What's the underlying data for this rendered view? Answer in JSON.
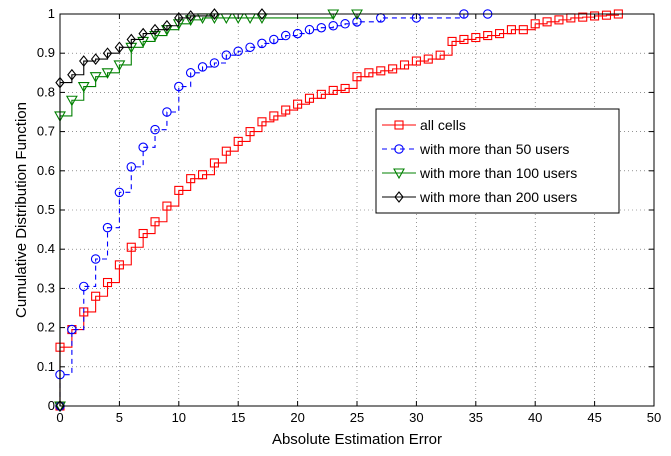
{
  "chart_data": {
    "type": "line",
    "xlabel": "Absolute Estimation Error",
    "ylabel": "Cumulative Distribution Function",
    "xlim": [
      0,
      50
    ],
    "ylim": [
      0,
      1
    ],
    "xticks": [
      0,
      5,
      10,
      15,
      20,
      25,
      30,
      35,
      40,
      45,
      50
    ],
    "yticks": [
      0,
      0.1,
      0.2,
      0.3,
      0.4,
      0.5,
      0.6,
      0.7,
      0.8,
      0.9,
      1
    ],
    "xtick_labels": [
      "0",
      "5",
      "10",
      "15",
      "20",
      "25",
      "30",
      "35",
      "40",
      "45",
      "50"
    ],
    "ytick_labels": [
      "0",
      "0.1",
      "0.2",
      "0.3",
      "0.4",
      "0.5",
      "0.6",
      "0.7",
      "0.8",
      "0.9",
      "1"
    ],
    "grid": true,
    "legend_position": "center-right",
    "series": [
      {
        "name": "all cells",
        "color": "#ff0000",
        "line_style": "solid",
        "marker": "square",
        "x": [
          0,
          1,
          2,
          3,
          4,
          5,
          6,
          7,
          8,
          9,
          10,
          11,
          12,
          13,
          14,
          15,
          16,
          17,
          18,
          19,
          20,
          21,
          22,
          23,
          24,
          25,
          26,
          27,
          28,
          29,
          30,
          31,
          32,
          33,
          34,
          35,
          36,
          37,
          38,
          39,
          40,
          41,
          42,
          43,
          44,
          45,
          46,
          47
        ],
        "y": [
          0.15,
          0.195,
          0.24,
          0.28,
          0.315,
          0.36,
          0.405,
          0.44,
          0.47,
          0.51,
          0.55,
          0.58,
          0.59,
          0.62,
          0.65,
          0.675,
          0.7,
          0.725,
          0.74,
          0.755,
          0.77,
          0.785,
          0.795,
          0.805,
          0.81,
          0.84,
          0.85,
          0.855,
          0.86,
          0.87,
          0.88,
          0.885,
          0.895,
          0.93,
          0.935,
          0.94,
          0.945,
          0.95,
          0.96,
          0.96,
          0.975,
          0.98,
          0.985,
          0.99,
          0.992,
          0.995,
          0.997,
          1.0
        ]
      },
      {
        "name": "with more than 50 users",
        "color": "#0000ff",
        "line_style": "dashed",
        "marker": "circle",
        "x": [
          0,
          1,
          2,
          3,
          4,
          5,
          6,
          7,
          8,
          9,
          10,
          11,
          12,
          13,
          14,
          15,
          16,
          17,
          18,
          19,
          20,
          21,
          22,
          23,
          24,
          25,
          27,
          30,
          34,
          36
        ],
        "y": [
          0.08,
          0.195,
          0.305,
          0.375,
          0.455,
          0.545,
          0.61,
          0.66,
          0.705,
          0.75,
          0.815,
          0.85,
          0.865,
          0.875,
          0.895,
          0.905,
          0.915,
          0.925,
          0.935,
          0.945,
          0.95,
          0.96,
          0.965,
          0.97,
          0.975,
          0.98,
          0.99,
          0.99,
          1.0,
          1.0
        ]
      },
      {
        "name": "with more than 100 users",
        "color": "#008000",
        "line_style": "solid",
        "marker": "triangle-down",
        "x": [
          0,
          1,
          2,
          3,
          4,
          5,
          6,
          7,
          8,
          9,
          10,
          11,
          12,
          13,
          14,
          15,
          16,
          17,
          23,
          25
        ],
        "y": [
          0.74,
          0.78,
          0.815,
          0.84,
          0.85,
          0.87,
          0.915,
          0.93,
          0.945,
          0.96,
          0.975,
          0.985,
          0.99,
          0.99,
          0.99,
          0.99,
          0.99,
          0.99,
          1.0,
          1.0
        ]
      },
      {
        "name": "with more than 200 users",
        "color": "#000000",
        "line_style": "solid",
        "marker": "diamond",
        "x": [
          0,
          1,
          2,
          3,
          4,
          5,
          6,
          7,
          8,
          9,
          10,
          11,
          13,
          17
        ],
        "y": [
          0.825,
          0.845,
          0.88,
          0.885,
          0.9,
          0.915,
          0.935,
          0.95,
          0.96,
          0.97,
          0.99,
          0.995,
          1.0,
          1.0
        ]
      }
    ]
  }
}
